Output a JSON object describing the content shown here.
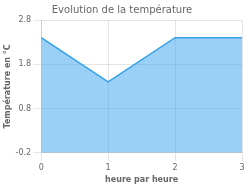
{
  "chart_data": {
    "type": "area",
    "title": "Evolution de la température",
    "xlabel": "heure par heure",
    "ylabel": "Température en °C",
    "x": [
      0,
      1,
      2,
      3
    ],
    "values": [
      2.4,
      1.4,
      2.4,
      2.4
    ],
    "xlim": [
      0,
      3
    ],
    "ylim": [
      -0.2,
      2.8
    ],
    "xticks": [
      0,
      1,
      2,
      3
    ],
    "yticks": [
      -0.2,
      0.8,
      1.8,
      2.8
    ],
    "grid": true
  }
}
